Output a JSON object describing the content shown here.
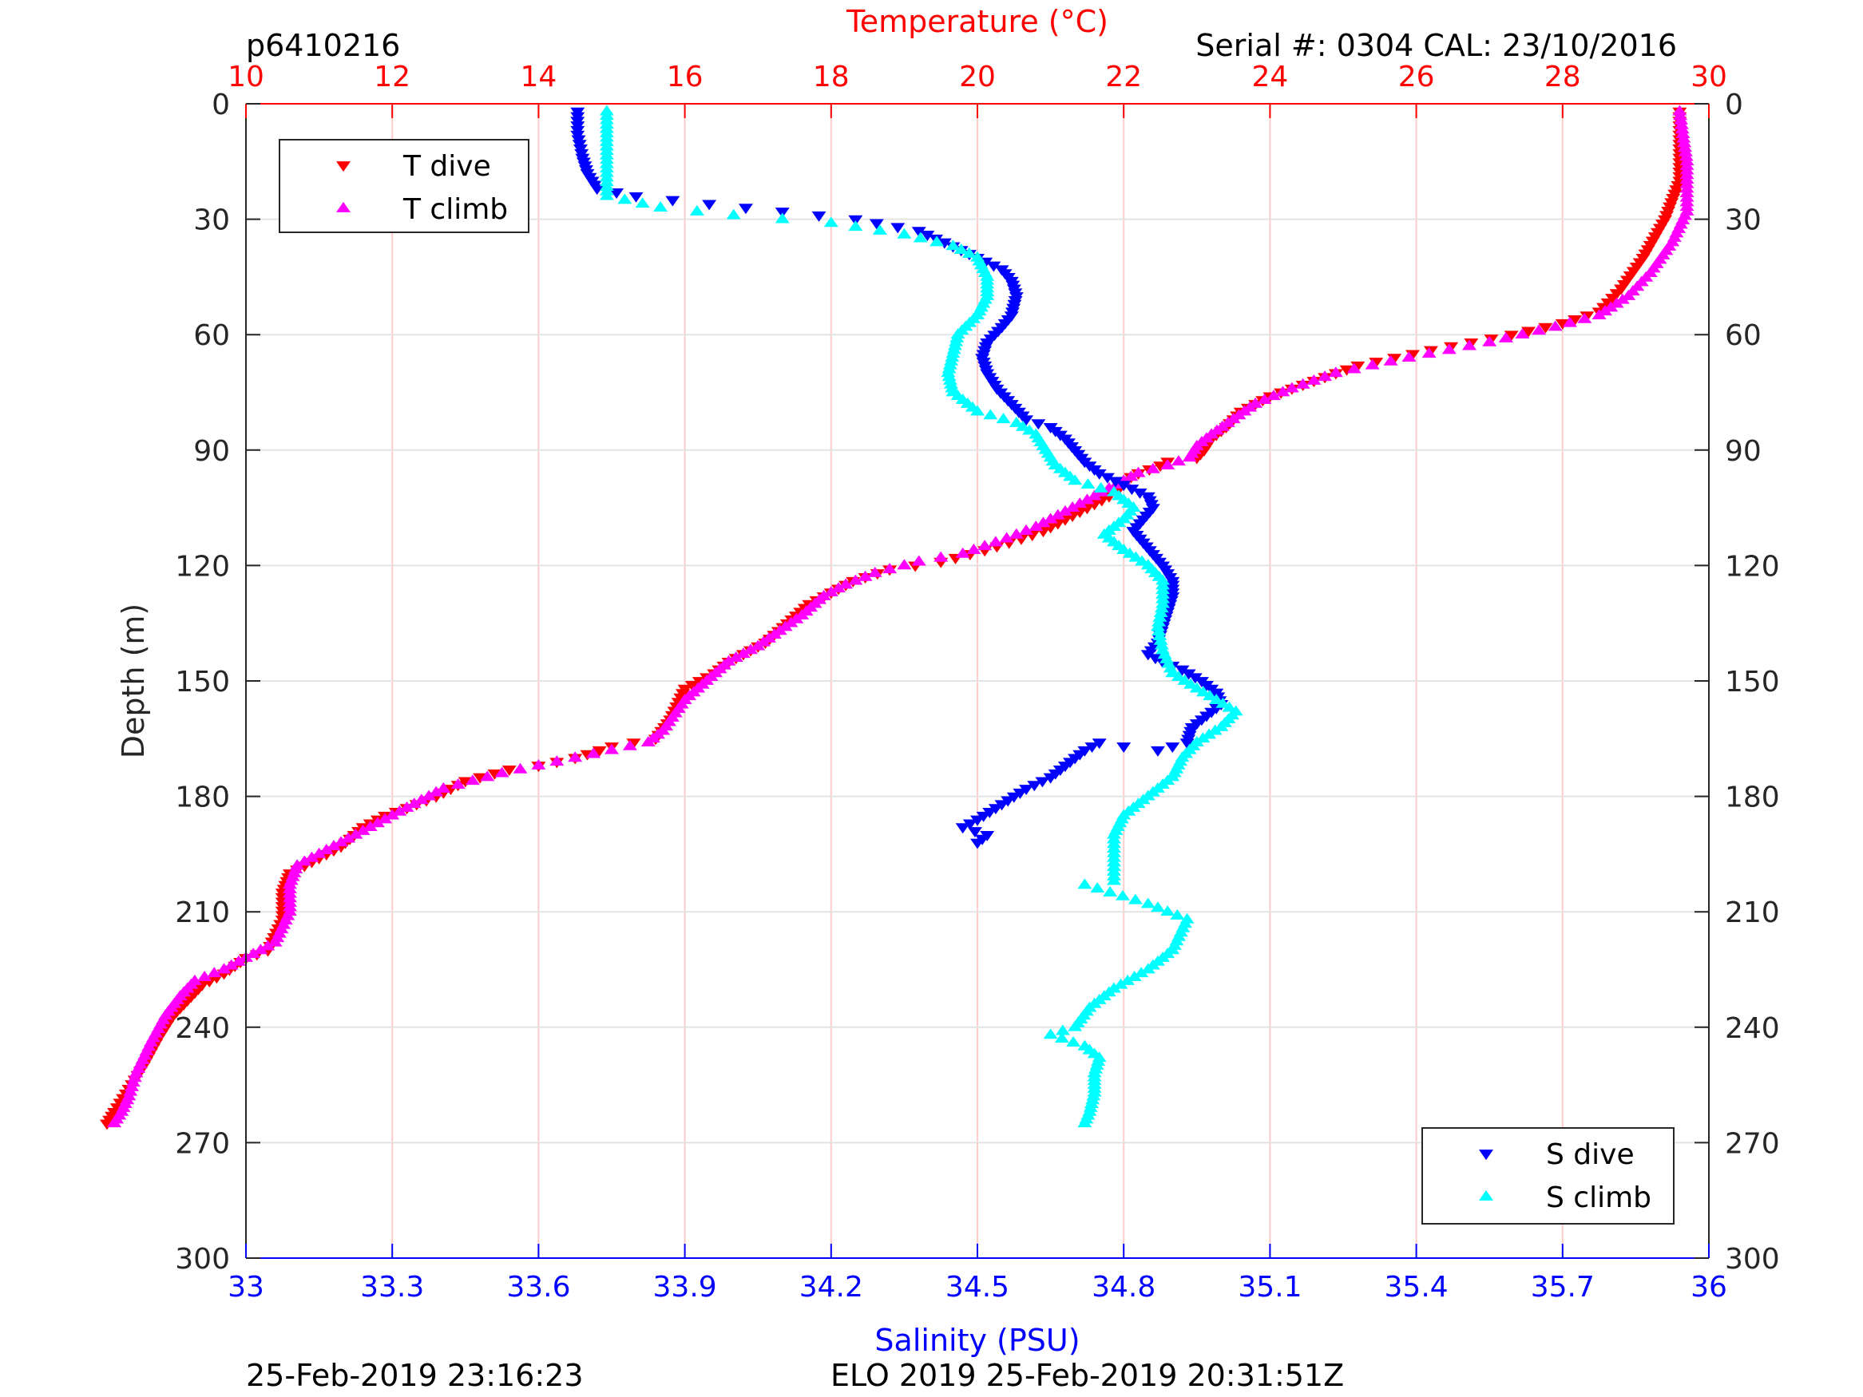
{
  "chart_data": {
    "type": "scatter",
    "profile_id": "p6410216",
    "serial_label": "Serial #: 0304  CAL: 23/10/2016",
    "footer_left": "25-Feb-2019 23:16:23",
    "footer_right": "ELO 2019 25-Feb-2019 20:31:51Z",
    "ylabel": "Depth (m)",
    "ylim": [
      0,
      300
    ],
    "y_reversed": true,
    "y_ticks": [
      0,
      30,
      60,
      90,
      120,
      150,
      180,
      210,
      240,
      270,
      300
    ],
    "temperature_axis": {
      "label": "Temperature (°C)",
      "range": [
        10,
        30
      ],
      "ticks": [
        10,
        12,
        14,
        16,
        18,
        20,
        22,
        24,
        26,
        28,
        30
      ],
      "color": "#ff0000",
      "grid_color": "#ffcccc"
    },
    "salinity_axis": {
      "label": "Salinity (PSU)",
      "range": [
        33,
        36
      ],
      "ticks": [
        "33",
        "33.3",
        "33.6",
        "33.9",
        "34.2",
        "34.5",
        "34.8",
        "35.1",
        "35.4",
        "35.7",
        "36"
      ],
      "color": "#0000ff"
    },
    "grid": true,
    "legends": [
      {
        "position": "top-left",
        "entries": [
          {
            "label": "T dive",
            "marker": "down-triangle",
            "color": "#ff0000"
          },
          {
            "label": "T climb",
            "marker": "up-triangle",
            "color": "#ff00ff"
          }
        ]
      },
      {
        "position": "bottom-right",
        "entries": [
          {
            "label": "S dive",
            "marker": "down-triangle",
            "color": "#0000ff"
          },
          {
            "label": "S climb",
            "marker": "up-triangle",
            "color": "#00ffff"
          }
        ]
      }
    ],
    "series": [
      {
        "name": "T dive",
        "axis": "temperature",
        "marker": "down-triangle",
        "color": "#ff0000",
        "points": [
          [
            29.6,
            2
          ],
          [
            29.6,
            20
          ],
          [
            29.4,
            30
          ],
          [
            29.1,
            40
          ],
          [
            28.8,
            48
          ],
          [
            28.5,
            54
          ],
          [
            28.0,
            57
          ],
          [
            27.3,
            60
          ],
          [
            26.2,
            64
          ],
          [
            25.2,
            68
          ],
          [
            24.6,
            72
          ],
          [
            24.0,
            76
          ],
          [
            23.6,
            80
          ],
          [
            23.4,
            84
          ],
          [
            23.2,
            87
          ],
          [
            23.1,
            90
          ],
          [
            23.0,
            92
          ],
          [
            22.6,
            93
          ],
          [
            22.5,
            94
          ],
          [
            22.2,
            96
          ],
          [
            22.0,
            98
          ],
          [
            21.9,
            101
          ],
          [
            21.6,
            104
          ],
          [
            21.3,
            107
          ],
          [
            21.1,
            109
          ],
          [
            20.9,
            111
          ],
          [
            20.6,
            113
          ],
          [
            20.1,
            116
          ],
          [
            19.5,
            119
          ],
          [
            18.8,
            121
          ],
          [
            18.3,
            124
          ],
          [
            18.0,
            127
          ],
          [
            17.7,
            130
          ],
          [
            17.4,
            135
          ],
          [
            17.1,
            140
          ],
          [
            16.8,
            143
          ],
          [
            16.6,
            145
          ],
          [
            16.4,
            148
          ],
          [
            16.0,
            152
          ],
          [
            15.8,
            160
          ],
          [
            15.6,
            165
          ],
          [
            15.0,
            167
          ],
          [
            14.5,
            170
          ],
          [
            14.0,
            172
          ],
          [
            13.6,
            173
          ],
          [
            13.0,
            176
          ],
          [
            12.6,
            180
          ],
          [
            12.2,
            183
          ],
          [
            11.9,
            185
          ],
          [
            11.6,
            188
          ],
          [
            11.3,
            193
          ],
          [
            11.0,
            196
          ],
          [
            10.6,
            200
          ],
          [
            10.5,
            205
          ],
          [
            10.5,
            212
          ],
          [
            10.3,
            220
          ],
          [
            10.0,
            222
          ],
          [
            9.7,
            226
          ],
          [
            9.4,
            229
          ],
          [
            9.2,
            233
          ],
          [
            9.0,
            237
          ],
          [
            8.8,
            243
          ],
          [
            8.6,
            250
          ],
          [
            8.4,
            256
          ],
          [
            8.2,
            262
          ],
          [
            8.1,
            265
          ]
        ]
      },
      {
        "name": "T climb",
        "axis": "temperature",
        "marker": "up-triangle",
        "color": "#ff00ff",
        "points": [
          [
            29.6,
            2
          ],
          [
            29.7,
            15
          ],
          [
            29.7,
            28
          ],
          [
            29.5,
            36
          ],
          [
            29.2,
            44
          ],
          [
            28.9,
            50
          ],
          [
            28.5,
            55
          ],
          [
            27.9,
            58
          ],
          [
            27.0,
            62
          ],
          [
            25.9,
            66
          ],
          [
            24.9,
            70
          ],
          [
            24.3,
            74
          ],
          [
            23.8,
            78
          ],
          [
            23.5,
            82
          ],
          [
            23.2,
            86
          ],
          [
            23.0,
            89
          ],
          [
            22.9,
            92
          ],
          [
            22.6,
            94
          ],
          [
            22.2,
            96
          ],
          [
            21.9,
            99
          ],
          [
            21.5,
            103
          ],
          [
            21.1,
            107
          ],
          [
            20.8,
            110
          ],
          [
            20.4,
            113
          ],
          [
            19.8,
            117
          ],
          [
            19.2,
            119
          ],
          [
            18.6,
            122
          ],
          [
            18.2,
            125
          ],
          [
            17.9,
            128
          ],
          [
            17.6,
            133
          ],
          [
            17.3,
            137
          ],
          [
            17.0,
            141
          ],
          [
            16.6,
            145
          ],
          [
            16.3,
            150
          ],
          [
            16.0,
            155
          ],
          [
            15.7,
            163
          ],
          [
            15.5,
            166
          ],
          [
            15.0,
            168
          ],
          [
            14.5,
            170
          ],
          [
            14.0,
            172
          ],
          [
            13.5,
            174
          ],
          [
            13.1,
            176
          ],
          [
            12.7,
            178
          ],
          [
            12.3,
            182
          ],
          [
            12.0,
            185
          ],
          [
            11.7,
            188
          ],
          [
            11.4,
            191
          ],
          [
            11.1,
            194
          ],
          [
            10.7,
            198
          ],
          [
            10.6,
            203
          ],
          [
            10.6,
            210
          ],
          [
            10.4,
            218
          ],
          [
            10.1,
            221
          ],
          [
            9.7,
            225
          ],
          [
            9.3,
            228
          ],
          [
            9.1,
            232
          ],
          [
            8.9,
            237
          ],
          [
            8.7,
            244
          ],
          [
            8.5,
            252
          ],
          [
            8.4,
            258
          ],
          [
            8.3,
            262
          ],
          [
            8.2,
            265
          ]
        ]
      },
      {
        "name": "S dive",
        "axis": "salinity",
        "marker": "down-triangle",
        "color": "#0000ff",
        "points": [
          [
            33.68,
            2
          ],
          [
            33.68,
            8
          ],
          [
            33.69,
            14
          ],
          [
            33.7,
            18
          ],
          [
            33.72,
            22
          ],
          [
            33.8,
            24
          ],
          [
            33.95,
            26
          ],
          [
            34.1,
            28
          ],
          [
            34.25,
            30
          ],
          [
            34.38,
            33
          ],
          [
            34.45,
            37
          ],
          [
            34.5,
            40
          ],
          [
            34.55,
            43
          ],
          [
            34.57,
            46
          ],
          [
            34.58,
            50
          ],
          [
            34.57,
            55
          ],
          [
            34.55,
            58
          ],
          [
            34.52,
            62
          ],
          [
            34.51,
            66
          ],
          [
            34.52,
            70
          ],
          [
            34.54,
            74
          ],
          [
            34.57,
            78
          ],
          [
            34.6,
            82
          ],
          [
            34.65,
            84
          ],
          [
            34.68,
            87
          ],
          [
            34.7,
            90
          ],
          [
            34.72,
            93
          ],
          [
            34.75,
            96
          ],
          [
            34.8,
            99
          ],
          [
            34.85,
            102
          ],
          [
            34.86,
            105
          ],
          [
            34.84,
            108
          ],
          [
            34.82,
            111
          ],
          [
            34.84,
            114
          ],
          [
            34.86,
            117
          ],
          [
            34.88,
            120
          ],
          [
            34.9,
            124
          ],
          [
            34.9,
            128
          ],
          [
            34.89,
            132
          ],
          [
            34.88,
            136
          ],
          [
            34.87,
            140
          ],
          [
            34.85,
            143
          ],
          [
            34.88,
            145
          ],
          [
            34.92,
            147
          ],
          [
            34.96,
            150
          ],
          [
            34.99,
            153
          ],
          [
            35.0,
            156
          ],
          [
            34.97,
            159
          ],
          [
            34.94,
            162
          ],
          [
            34.93,
            166
          ],
          [
            34.87,
            168
          ],
          [
            34.8,
            167
          ],
          [
            34.75,
            166
          ],
          [
            34.72,
            168
          ],
          [
            34.68,
            172
          ],
          [
            34.65,
            175
          ],
          [
            34.6,
            178
          ],
          [
            34.55,
            182
          ],
          [
            34.5,
            186
          ],
          [
            34.47,
            188
          ],
          [
            34.52,
            190
          ],
          [
            34.5,
            192
          ]
        ]
      },
      {
        "name": "S climb",
        "axis": "salinity",
        "marker": "up-triangle",
        "color": "#00ffff",
        "points": [
          [
            33.74,
            2
          ],
          [
            33.74,
            10
          ],
          [
            33.74,
            18
          ],
          [
            33.74,
            24
          ],
          [
            33.85,
            27
          ],
          [
            34.0,
            29
          ],
          [
            34.2,
            31
          ],
          [
            34.35,
            34
          ],
          [
            34.45,
            37
          ],
          [
            34.5,
            40
          ],
          [
            34.52,
            45
          ],
          [
            34.52,
            50
          ],
          [
            34.5,
            55
          ],
          [
            34.46,
            60
          ],
          [
            34.45,
            65
          ],
          [
            34.44,
            70
          ],
          [
            34.45,
            75
          ],
          [
            34.5,
            80
          ],
          [
            34.58,
            83
          ],
          [
            34.62,
            86
          ],
          [
            34.64,
            90
          ],
          [
            34.66,
            94
          ],
          [
            34.7,
            98
          ],
          [
            34.78,
            101
          ],
          [
            34.82,
            105
          ],
          [
            34.8,
            108
          ],
          [
            34.76,
            112
          ],
          [
            34.8,
            116
          ],
          [
            34.85,
            120
          ],
          [
            34.88,
            124
          ],
          [
            34.88,
            130
          ],
          [
            34.87,
            136
          ],
          [
            34.88,
            142
          ],
          [
            34.9,
            148
          ],
          [
            34.95,
            152
          ],
          [
            34.99,
            155
          ],
          [
            35.03,
            158
          ],
          [
            35.0,
            162
          ],
          [
            34.95,
            166
          ],
          [
            34.92,
            170
          ],
          [
            34.9,
            175
          ],
          [
            34.85,
            180
          ],
          [
            34.8,
            185
          ],
          [
            34.78,
            190
          ],
          [
            34.78,
            196
          ],
          [
            34.78,
            202
          ],
          [
            34.72,
            203
          ],
          [
            34.85,
            208
          ],
          [
            34.93,
            212
          ],
          [
            34.9,
            220
          ],
          [
            34.85,
            225
          ],
          [
            34.78,
            230
          ],
          [
            34.73,
            235
          ],
          [
            34.7,
            240
          ],
          [
            34.65,
            242
          ],
          [
            34.72,
            245
          ],
          [
            34.75,
            248
          ],
          [
            34.74,
            252
          ],
          [
            34.74,
            257
          ],
          [
            34.73,
            262
          ],
          [
            34.72,
            265
          ]
        ]
      }
    ]
  }
}
